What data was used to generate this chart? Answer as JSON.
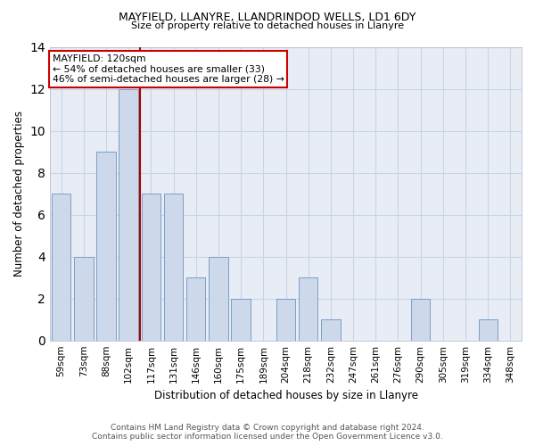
{
  "title1": "MAYFIELD, LLANYRE, LLANDRINDOD WELLS, LD1 6DY",
  "title2": "Size of property relative to detached houses in Llanyre",
  "xlabel": "Distribution of detached houses by size in Llanyre",
  "ylabel": "Number of detached properties",
  "bar_labels": [
    "59sqm",
    "73sqm",
    "88sqm",
    "102sqm",
    "117sqm",
    "131sqm",
    "146sqm",
    "160sqm",
    "175sqm",
    "189sqm",
    "204sqm",
    "218sqm",
    "232sqm",
    "247sqm",
    "261sqm",
    "276sqm",
    "290sqm",
    "305sqm",
    "319sqm",
    "334sqm",
    "348sqm"
  ],
  "bar_heights": [
    7,
    4,
    9,
    12,
    7,
    7,
    3,
    4,
    2,
    0,
    2,
    3,
    1,
    0,
    0,
    0,
    2,
    0,
    0,
    1,
    0
  ],
  "bar_color": "#cdd8ea",
  "bar_edge_color": "#7a9ec8",
  "annotation_title": "MAYFIELD: 120sqm",
  "annotation_line1": "← 54% of detached houses are smaller (33)",
  "annotation_line2": "46% of semi-detached houses are larger (28) →",
  "vline_color": "#aa0000",
  "annotation_box_color": "#ffffff",
  "annotation_box_edge": "#cc0000",
  "footer1": "Contains HM Land Registry data © Crown copyright and database right 2024.",
  "footer2": "Contains public sector information licensed under the Open Government Licence v3.0.",
  "ylim": [
    0,
    14
  ],
  "yticks": [
    0,
    2,
    4,
    6,
    8,
    10,
    12,
    14
  ],
  "grid_color": "#c8d4e8",
  "bg_color": "#e8edf5"
}
